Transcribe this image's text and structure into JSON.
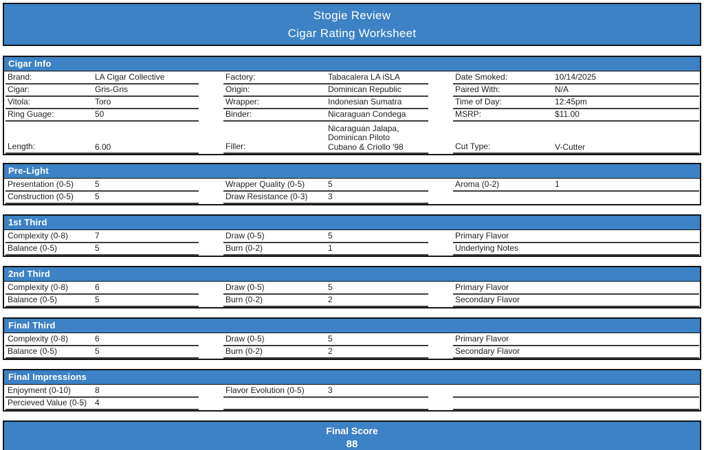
{
  "page": {
    "title_line1": "Stogie Review",
    "title_line2": "Cigar Rating Worksheet"
  },
  "colors": {
    "accent_blue": "#3c82c4",
    "border_black": "#141414",
    "underline_gray": "#3d3d3d"
  },
  "cigar_info": {
    "title": "Cigar Info",
    "cells": [
      {
        "label": "Brand:",
        "value": "LA Cigar Collective"
      },
      {
        "label": "Factory:",
        "value": "Tabacalera LA iSLA"
      },
      {
        "label": "Date Smoked:",
        "value": "10/14/2025"
      },
      {
        "label": "Cigar:",
        "value": "Gris-Gris"
      },
      {
        "label": "Origin:",
        "value": "Dominican Republic"
      },
      {
        "label": "Paired With:",
        "value": "N/A"
      },
      {
        "label": "Vitola:",
        "value": "Toro"
      },
      {
        "label": "Wrapper:",
        "value": "Indonesian Sumatra"
      },
      {
        "label": "Time of Day:",
        "value": "12:45pm"
      },
      {
        "label": "Ring Guage:",
        "value": "50"
      },
      {
        "label": "Binder:",
        "value": "Nicaraguan Condega"
      },
      {
        "label": "MSRP:",
        "value": "$11.00"
      },
      {
        "label": "Length:",
        "value": "6.00"
      },
      {
        "label": "Filler:",
        "value": "Nicaraguan Jalapa,\nDominican Piloto\nCubano & Criollo '98"
      },
      {
        "label": "Cut Type:",
        "value": "V-Cutter"
      }
    ]
  },
  "pre_light": {
    "title": "Pre-Light",
    "cells": [
      {
        "label": "Presentation (0-5)",
        "value": "5"
      },
      {
        "label": "Wrapper Quality (0-5)",
        "value": "5"
      },
      {
        "label": "Aroma (0-2)",
        "value": "1"
      },
      {
        "label": "Construction (0-5)",
        "value": "5"
      },
      {
        "label": "Draw Resistance (0-3)",
        "value": "3"
      },
      {
        "label": "",
        "value": ""
      }
    ]
  },
  "first_third": {
    "title": "1st Third",
    "cells": [
      {
        "label": "Complexity (0-8)",
        "value": "7"
      },
      {
        "label": "Draw (0-5)",
        "value": "5"
      },
      {
        "label": "Primary Flavor",
        "value": ""
      },
      {
        "label": "Balance (0-5)",
        "value": "5"
      },
      {
        "label": "Burn (0-2)",
        "value": "1"
      },
      {
        "label": "Underlying Notes",
        "value": ""
      }
    ]
  },
  "second_third": {
    "title": "2nd Third",
    "cells": [
      {
        "label": "Complexity (0-8)",
        "value": "6"
      },
      {
        "label": "Draw (0-5)",
        "value": "5"
      },
      {
        "label": "Primary Flavor",
        "value": ""
      },
      {
        "label": "Balance (0-5)",
        "value": "5"
      },
      {
        "label": "Burn (0-2)",
        "value": "2"
      },
      {
        "label": "Secondary Flavor",
        "value": ""
      }
    ]
  },
  "final_third": {
    "title": "Final Third",
    "cells": [
      {
        "label": "Complexity (0-8)",
        "value": "6"
      },
      {
        "label": "Draw (0-5)",
        "value": "5"
      },
      {
        "label": "Primary Flavor",
        "value": ""
      },
      {
        "label": "Balance (0-5)",
        "value": "5"
      },
      {
        "label": "Burn (0-2)",
        "value": "2"
      },
      {
        "label": "Secondary Flavor",
        "value": ""
      }
    ]
  },
  "final_impressions": {
    "title": "Final Impressions",
    "cells": [
      {
        "label": "Enjoyment (0-10)",
        "value": "8"
      },
      {
        "label": "Flavor Evolution (0-5)",
        "value": "3"
      },
      {
        "label": "",
        "value": ""
      },
      {
        "label": "Percieved Value (0-5)",
        "value": "4"
      },
      {
        "label": "",
        "value": ""
      },
      {
        "label": "",
        "value": ""
      }
    ]
  },
  "footer": {
    "label": "Final Score",
    "score": "88"
  }
}
